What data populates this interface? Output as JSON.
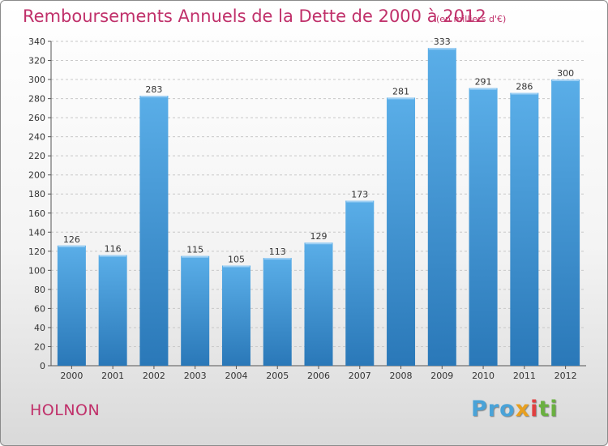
{
  "header": {
    "title": "Remboursements Annuels de la Dette de 2000 à 2012",
    "unit_note": "(en milliers d'€)"
  },
  "footer": {
    "commune": "HOLNON",
    "brand_parts": [
      "Pro",
      "x",
      "i",
      "ti"
    ]
  },
  "colors": {
    "title": "#c0306a",
    "bar_light": "#5aaee8",
    "bar_dark": "#2a78b8"
  },
  "chart_data": {
    "type": "bar",
    "title": "Remboursements Annuels de la Dette de 2000 à 2012",
    "subtitle": "(en milliers d'€)",
    "xlabel": "",
    "ylabel": "",
    "categories": [
      "2000",
      "2001",
      "2002",
      "2003",
      "2004",
      "2005",
      "2006",
      "2007",
      "2008",
      "2009",
      "2010",
      "2011",
      "2012"
    ],
    "values": [
      126,
      116,
      283,
      115,
      105,
      113,
      129,
      173,
      281,
      333,
      291,
      286,
      300
    ],
    "ylim": [
      0,
      340
    ],
    "yticks": [
      0,
      20,
      40,
      60,
      80,
      100,
      120,
      140,
      160,
      180,
      200,
      220,
      240,
      260,
      280,
      300,
      320,
      340
    ],
    "grid": "horizontal-dashed"
  }
}
